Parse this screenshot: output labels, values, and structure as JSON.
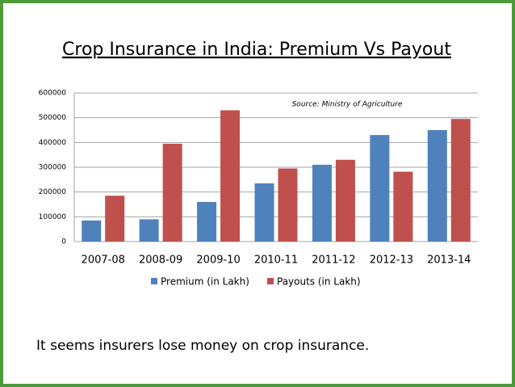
{
  "chart_data": {
    "type": "bar",
    "title": "Crop Insurance in India: Premium Vs Payout",
    "annotation": "Source: Ministry of Agriculture",
    "categories": [
      "2007-08",
      "2008-09",
      "2009-10",
      "2010-11",
      "2011-12",
      "2012-13",
      "2013-14"
    ],
    "series": [
      {
        "name": "Premium (in Lakh)",
        "color": "#4f81bd",
        "values": [
          85000,
          90000,
          160000,
          235000,
          310000,
          430000,
          450000
        ]
      },
      {
        "name": "Payouts (in Lakh)",
        "color": "#c0504d",
        "values": [
          185000,
          395000,
          530000,
          295000,
          330000,
          282000,
          495000
        ]
      }
    ],
    "ylim": [
      0,
      600000
    ],
    "yticks": [
      0,
      100000,
      200000,
      300000,
      400000,
      500000,
      600000
    ],
    "grid": true,
    "legend": "bottom"
  },
  "footer": {
    "text": "It seems insurers lose money on crop insurance."
  }
}
